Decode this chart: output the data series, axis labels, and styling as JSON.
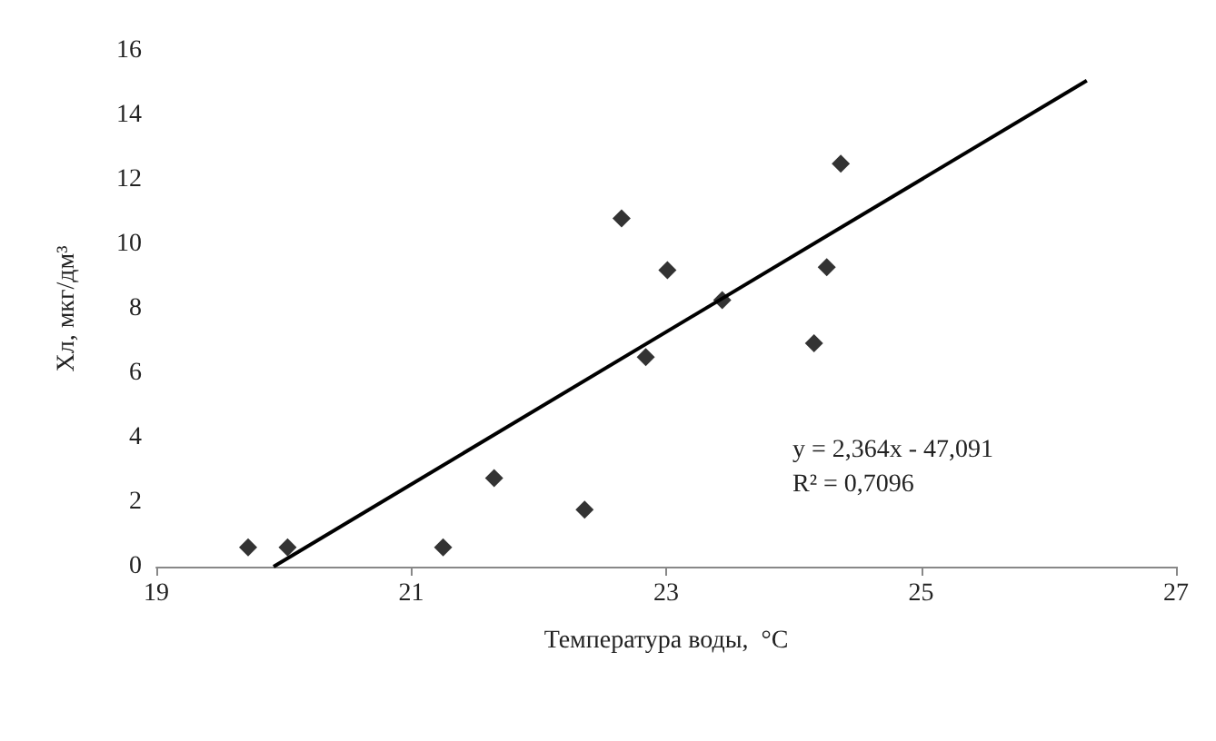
{
  "chart_data": {
    "type": "scatter",
    "xlabel": "Температура воды,  °С",
    "ylabel": "Хл, мкг/дм³",
    "xlim": [
      19,
      27
    ],
    "xticks": [
      19,
      21,
      23,
      25,
      27
    ],
    "ylim": [
      0,
      16
    ],
    "yticks": [
      0,
      2,
      4,
      6,
      8,
      10,
      12,
      14,
      16
    ],
    "grid": false,
    "series": [
      {
        "color": "#000000",
        "marker": "diamond",
        "x": [
          19.72,
          20.03,
          21.25,
          21.65,
          22.36,
          22.65,
          22.84,
          23.01,
          23.44,
          24.16,
          24.26,
          24.37
        ],
        "values": [
          0.6,
          0.6,
          0.6,
          2.75,
          1.77,
          10.8,
          6.5,
          9.2,
          8.27,
          6.93,
          9.29,
          12.5
        ]
      },
      {
        "type": "line",
        "color": "#000000",
        "x": [
          19.92,
          26.3
        ],
        "values": [
          0,
          15.08
        ],
        "marker": "none",
        "line_style": "solid"
      }
    ],
    "annotations": [
      "y = 2,364x - 47,091",
      "R² = 0,7096"
    ]
  }
}
